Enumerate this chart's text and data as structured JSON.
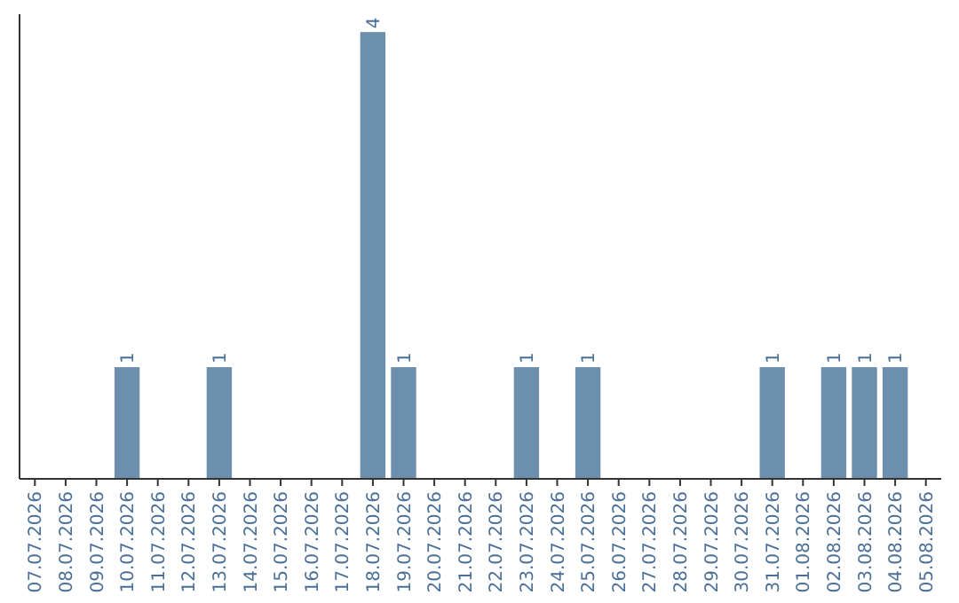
{
  "chart_data": {
    "type": "bar",
    "categories": [
      "07.07.2026",
      "08.07.2026",
      "09.07.2026",
      "10.07.2026",
      "11.07.2026",
      "12.07.2026",
      "13.07.2026",
      "14.07.2026",
      "15.07.2026",
      "16.07.2026",
      "17.07.2026",
      "18.07.2026",
      "19.07.2026",
      "20.07.2026",
      "21.07.2026",
      "22.07.2026",
      "23.07.2026",
      "24.07.2026",
      "25.07.2026",
      "26.07.2026",
      "27.07.2026",
      "28.07.2026",
      "29.07.2026",
      "30.07.2026",
      "31.07.2026",
      "01.08.2026",
      "02.08.2026",
      "03.08.2026",
      "04.08.2026",
      "05.08.2026"
    ],
    "values": [
      null,
      null,
      null,
      1,
      null,
      null,
      1,
      null,
      null,
      null,
      null,
      4,
      1,
      null,
      null,
      null,
      1,
      null,
      1,
      null,
      null,
      null,
      null,
      null,
      1,
      null,
      1,
      1,
      1,
      null
    ],
    "color": "#6d8fae",
    "ylim": [
      0,
      4.16
    ],
    "data_labels": true,
    "tick_labels": "x"
  }
}
